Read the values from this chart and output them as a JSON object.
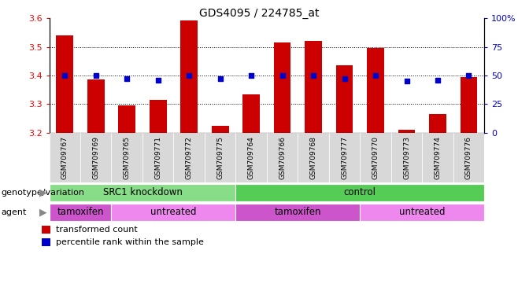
{
  "title": "GDS4095 / 224785_at",
  "samples": [
    "GSM709767",
    "GSM709769",
    "GSM709765",
    "GSM709771",
    "GSM709772",
    "GSM709775",
    "GSM709764",
    "GSM709766",
    "GSM709768",
    "GSM709777",
    "GSM709770",
    "GSM709773",
    "GSM709774",
    "GSM709776"
  ],
  "transformed_count": [
    3.54,
    3.385,
    3.295,
    3.315,
    3.592,
    3.225,
    3.335,
    3.515,
    3.52,
    3.435,
    3.495,
    3.21,
    3.265,
    3.395
  ],
  "percentile_rank": [
    50,
    50,
    47,
    46,
    50,
    47,
    50,
    50,
    50,
    47,
    50,
    45,
    46,
    50
  ],
  "bar_color": "#cc0000",
  "dot_color": "#0000cc",
  "ylim_left": [
    3.2,
    3.6
  ],
  "ylim_right": [
    0,
    100
  ],
  "yticks_left": [
    3.2,
    3.3,
    3.4,
    3.5,
    3.6
  ],
  "yticks_right": [
    0,
    25,
    50,
    75,
    100
  ],
  "hline_values": [
    3.3,
    3.4,
    3.5
  ],
  "genotype_groups": [
    {
      "label": "SRC1 knockdown",
      "start": 0,
      "end": 6,
      "color": "#88dd88"
    },
    {
      "label": "control",
      "start": 6,
      "end": 14,
      "color": "#55cc55"
    }
  ],
  "agent_groups": [
    {
      "label": "tamoxifen",
      "start": 0,
      "end": 2,
      "color": "#cc55cc"
    },
    {
      "label": "untreated",
      "start": 2,
      "end": 6,
      "color": "#ee88ee"
    },
    {
      "label": "tamoxifen",
      "start": 6,
      "end": 10,
      "color": "#cc55cc"
    },
    {
      "label": "untreated",
      "start": 10,
      "end": 14,
      "color": "#ee88ee"
    }
  ],
  "legend_labels": [
    "transformed count",
    "percentile rank within the sample"
  ],
  "legend_colors": [
    "#cc0000",
    "#0000cc"
  ],
  "bar_width": 0.55,
  "tick_label_fontsize": 8,
  "title_fontsize": 10,
  "sample_label_fontsize": 6.5,
  "annotation_fontsize": 8.5,
  "row_label_fontsize": 8
}
